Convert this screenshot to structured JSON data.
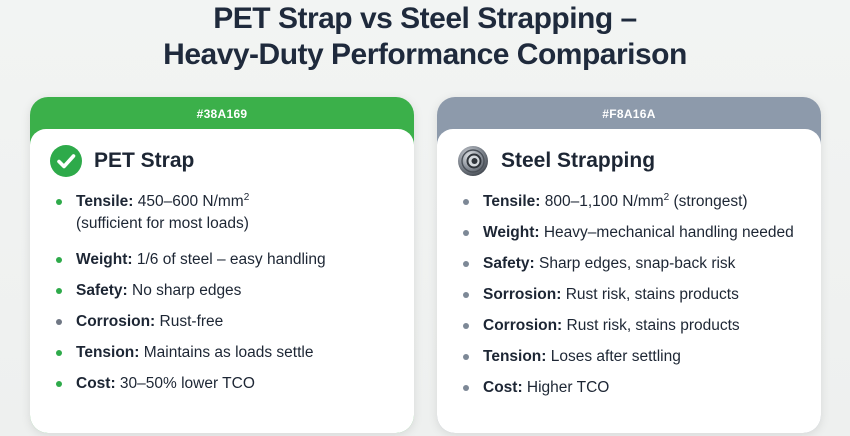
{
  "title": {
    "line1": "PET Strap vs Steel Strapping –",
    "line2": "Heavy-Duty Performance Comparison"
  },
  "colors": {
    "pet_accent": "#3bb04a",
    "steel_accent": "#8d9aab"
  },
  "pet": {
    "header": "#38A169",
    "name": "PET Strap",
    "icon": "check-circle-icon",
    "items": [
      {
        "label": "Tensile:",
        "text": "450–600 N/mm",
        "sup": "2",
        "line2": "(sufficient for most loads)"
      },
      {
        "label": "Weight:",
        "text": "1/6 of steel – easy handling"
      },
      {
        "label": "Safety:",
        "text": "No sharp edges"
      },
      {
        "label": "Corrosion:",
        "text": "Rust-free"
      },
      {
        "label": "Tension:",
        "text": "Maintains as loads settle"
      },
      {
        "label": "Cost:",
        "text": "30–50% lower TCO"
      }
    ]
  },
  "steel": {
    "header": "#F8A16A",
    "name": "Steel Strapping",
    "icon": "steel-coil-icon",
    "items": [
      {
        "label": "Tensile:",
        "text": "800–1,100 N/mm",
        "sup": "2",
        "after": " (strongest)"
      },
      {
        "label": "Weight:",
        "text": "Heavy–mechanical handling needed"
      },
      {
        "label": "Safety:",
        "text": "Sharp edges, snap-back risk"
      },
      {
        "label": "Sorrosion:",
        "text": "Rust risk, stains products"
      },
      {
        "label": "Corrosion:",
        "text": "Rust risk, stains products"
      },
      {
        "label": "Tension:",
        "text": "Loses after settling"
      },
      {
        "label": "Cost:",
        "text": "Higher TCO"
      }
    ]
  }
}
